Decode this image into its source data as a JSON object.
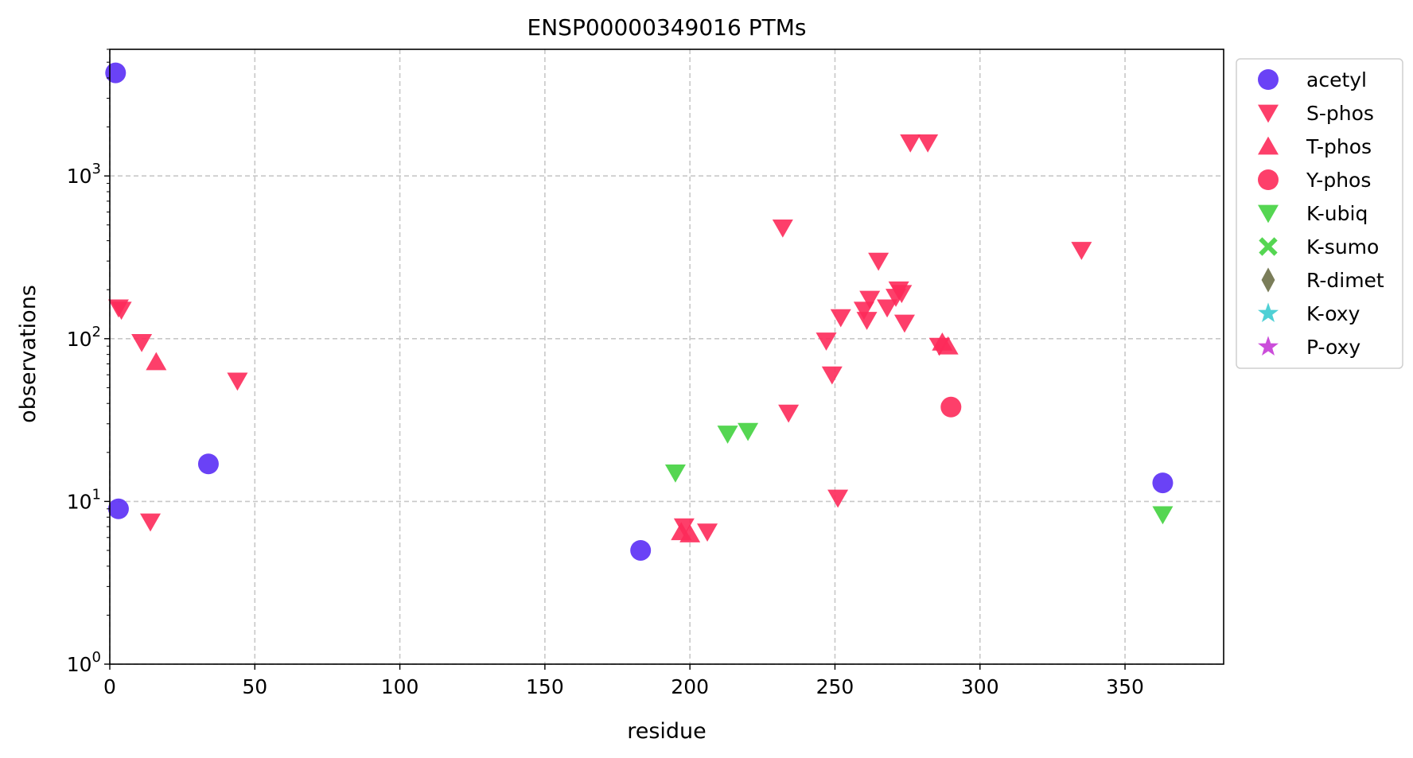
{
  "chart_data": {
    "type": "scatter",
    "title": "ENSP00000349016 PTMs",
    "xlabel": "residue",
    "ylabel": "observations",
    "xlim": [
      0,
      384
    ],
    "ylim": [
      1,
      6000
    ],
    "yscale": "log",
    "grid": true,
    "legend_position": "outside-right",
    "x_ticks": [
      0,
      50,
      100,
      150,
      200,
      250,
      300,
      350
    ],
    "y_ticks": [
      {
        "value": 1,
        "base": "10",
        "exp": "0"
      },
      {
        "value": 10,
        "base": "10",
        "exp": "1"
      },
      {
        "value": 100,
        "base": "10",
        "exp": "2"
      },
      {
        "value": 1000,
        "base": "10",
        "exp": "3"
      }
    ],
    "series": [
      {
        "name": "acetyl",
        "marker": "circle",
        "color": "#5a2ef5",
        "points": [
          [
            2,
            4300
          ],
          [
            3,
            9
          ],
          [
            34,
            17
          ],
          [
            183,
            5
          ],
          [
            363,
            13
          ]
        ]
      },
      {
        "name": "S-phos",
        "marker": "triangle-down",
        "color": "#fd2a5a",
        "points": [
          [
            3,
            155
          ],
          [
            4,
            150
          ],
          [
            11,
            95
          ],
          [
            14,
            7.5
          ],
          [
            44,
            55
          ],
          [
            198,
            7
          ],
          [
            206,
            6.5
          ],
          [
            232,
            480
          ],
          [
            234,
            35
          ],
          [
            247,
            97
          ],
          [
            249,
            60
          ],
          [
            251,
            10.5
          ],
          [
            252,
            135
          ],
          [
            260,
            150
          ],
          [
            261,
            130
          ],
          [
            262,
            175
          ],
          [
            265,
            300
          ],
          [
            268,
            155
          ],
          [
            271,
            180
          ],
          [
            272,
            200
          ],
          [
            273,
            190
          ],
          [
            274,
            125
          ],
          [
            276,
            1600
          ],
          [
            282,
            1600
          ],
          [
            286,
            90
          ],
          [
            335,
            350
          ]
        ]
      },
      {
        "name": "T-phos",
        "marker": "triangle-up",
        "color": "#fd2a5a",
        "points": [
          [
            16,
            72
          ],
          [
            197,
            6.5
          ],
          [
            200,
            6.3
          ],
          [
            287,
            95
          ],
          [
            289,
            90
          ]
        ]
      },
      {
        "name": "Y-phos",
        "marker": "circle",
        "color": "#fd2a5a",
        "points": [
          [
            290,
            38
          ]
        ]
      },
      {
        "name": "K-ubiq",
        "marker": "triangle-down",
        "color": "#42d23f",
        "points": [
          [
            195,
            15
          ],
          [
            213,
            26
          ],
          [
            220,
            27
          ],
          [
            363,
            8.3
          ]
        ]
      },
      {
        "name": "K-sumo",
        "marker": "x",
        "color": "#42d23f",
        "points": []
      },
      {
        "name": "R-dimet",
        "marker": "diamond",
        "color": "#6b6f47",
        "points": []
      },
      {
        "name": "K-oxy",
        "marker": "star",
        "color": "#3ccbd0",
        "points": []
      },
      {
        "name": "P-oxy",
        "marker": "star",
        "color": "#c53ad6",
        "points": []
      }
    ]
  }
}
